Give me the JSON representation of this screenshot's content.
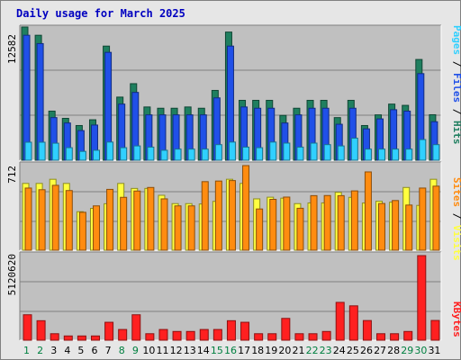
{
  "title": "Daily usage for March 2025",
  "colors": {
    "hits": "#1f7f5f",
    "files": "#2050e8",
    "pages": "#30d0ff",
    "visits": "#ffff40",
    "sites": "#ff8c10",
    "kbytes": "#ff2020",
    "weekend_label": "#008040",
    "weekday_label": "#000000",
    "panel_bg": "#c0c0c0"
  },
  "side_labels": {
    "top": {
      "pages": "Pages",
      "sep1": " / ",
      "files": "Files",
      "sep2": " / ",
      "hits": "Hits"
    },
    "middle": {
      "sites": "Sites",
      "sep": " / ",
      "visits": "Visits"
    },
    "bottom": {
      "kbytes": "KBytes"
    }
  },
  "chart_data": [
    {
      "type": "bar",
      "name": "hits-files-pages",
      "categories": [
        "1",
        "2",
        "3",
        "4",
        "5",
        "6",
        "7",
        "8",
        "9",
        "10",
        "11",
        "12",
        "13",
        "14",
        "15",
        "16",
        "17",
        "18",
        "19",
        "20",
        "21",
        "22",
        "23",
        "24",
        "25",
        "26",
        "27",
        "28",
        "29",
        "30",
        "31"
      ],
      "weekend_days": [
        1,
        2,
        8,
        9,
        15,
        16,
        22,
        23,
        29,
        30
      ],
      "y_max_label": "12582",
      "ylim": [
        0,
        12582
      ],
      "series": [
        {
          "key": "hits",
          "values": [
            12582,
            11802,
            4636,
            3954,
            3275,
            3820,
            10778,
            5960,
            7229,
            5028,
            4909,
            4909,
            5028,
            4909,
            6592,
            12104,
            5655,
            5655,
            5655,
            4230,
            4909,
            5655,
            5655,
            4024,
            5655,
            3275,
            4283,
            5300,
            5181,
            9513,
            4296
          ]
        },
        {
          "key": "files",
          "values": [
            11802,
            11014,
            4024,
            3515,
            2796,
            3320,
            10188,
            5300,
            6404,
            4283,
            4283,
            4283,
            4283,
            4283,
            5886,
            10778,
            5028,
            4909,
            4909,
            3515,
            4283,
            4909,
            4909,
            3395,
            4909,
            2960,
            3902,
            4769,
            4636,
            8178,
            3635
          ]
        },
        {
          "key": "pages",
          "values": [
            1699,
            1699,
            1606,
            1183,
            835,
            939,
            1713,
            1183,
            1350,
            1236,
            939,
            1049,
            1049,
            1049,
            1470,
            1713,
            1236,
            1183,
            1713,
            1616,
            1236,
            1614,
            1470,
            1350,
            2079,
            1049,
            1049,
            1049,
            1049,
            1949,
            1470
          ]
        }
      ]
    },
    {
      "type": "bar",
      "name": "visits-sites",
      "categories": [
        "1",
        "2",
        "3",
        "4",
        "5",
        "6",
        "7",
        "8",
        "9",
        "10",
        "11",
        "12",
        "13",
        "14",
        "15",
        "16",
        "17",
        "18",
        "19",
        "20",
        "21",
        "22",
        "23",
        "24",
        "25",
        "26",
        "27",
        "28",
        "29",
        "30",
        "31"
      ],
      "y_max_label": "712",
      "ylim": [
        0,
        712
      ],
      "series": [
        {
          "key": "visits",
          "values": [
            562,
            562,
            597,
            562,
            324,
            352,
            391,
            562,
            520,
            520,
            462,
            392,
            392,
            389,
            411,
            597,
            562,
            432,
            446,
            438,
            392,
            398,
            398,
            487,
            445,
            397,
            412,
            404,
            528,
            377,
            597
          ]
        },
        {
          "key": "sites",
          "values": [
            523,
            509,
            546,
            502,
            319,
            373,
            512,
            445,
            498,
            528,
            432,
            373,
            373,
            577,
            582,
            586,
            712,
            347,
            428,
            447,
            353,
            459,
            460,
            459,
            499,
            659,
            393,
            418,
            380,
            523,
            539
          ]
        }
      ]
    },
    {
      "type": "bar",
      "name": "kbytes",
      "categories": [
        "1",
        "2",
        "3",
        "4",
        "5",
        "6",
        "7",
        "8",
        "9",
        "10",
        "11",
        "12",
        "13",
        "14",
        "15",
        "16",
        "17",
        "18",
        "19",
        "20",
        "21",
        "22",
        "23",
        "24",
        "25",
        "26",
        "27",
        "28",
        "29",
        "30",
        "31"
      ],
      "y_max_label": "5120620",
      "ylim": [
        0,
        5120620
      ],
      "series": [
        {
          "key": "kbytes",
          "values": [
            1540000,
            1180000,
            393000,
            257000,
            257000,
            257000,
            1086000,
            648000,
            1540000,
            393000,
            648000,
            529000,
            529000,
            648000,
            648000,
            1180000,
            1086000,
            393000,
            393000,
            1320000,
            393000,
            393000,
            529000,
            2290000,
            2080000,
            1190000,
            393000,
            393000,
            529000,
            5120620,
            1195000
          ]
        }
      ]
    }
  ]
}
